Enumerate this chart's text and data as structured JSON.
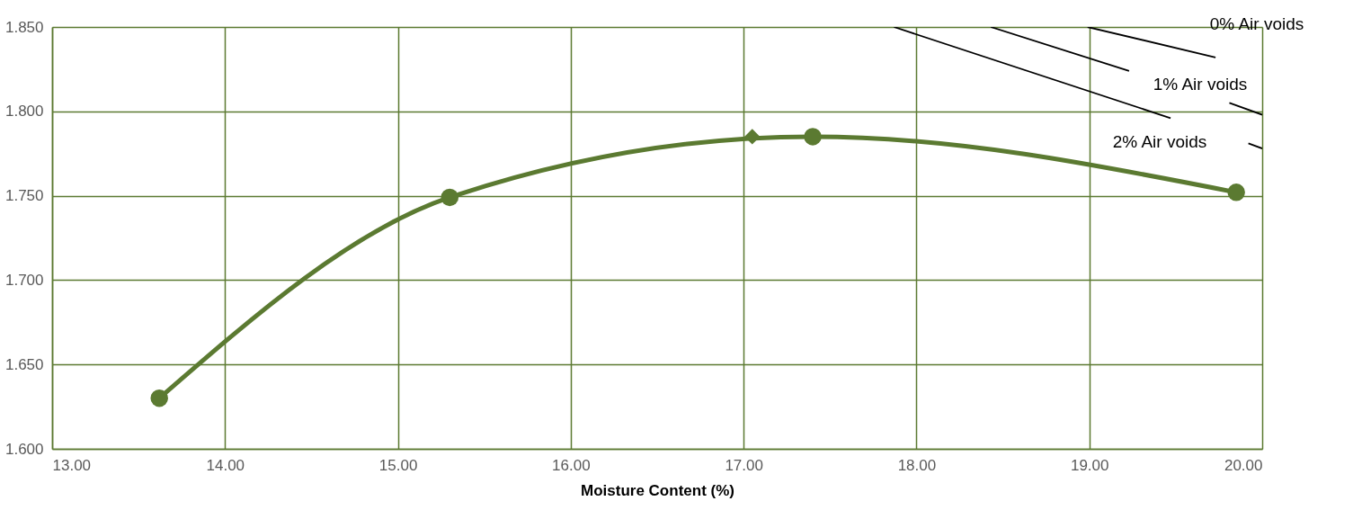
{
  "chart_data": {
    "type": "line",
    "xlabel": "Moisture Content (%)",
    "xlim": [
      13.0,
      20.0
    ],
    "xticks": [
      {
        "value": 13,
        "label": "13.00"
      },
      {
        "value": 14,
        "label": "14.00"
      },
      {
        "value": 15,
        "label": "15.00"
      },
      {
        "value": 16,
        "label": "16.00"
      },
      {
        "value": 17,
        "label": "17.00"
      },
      {
        "value": 18,
        "label": "18.00"
      },
      {
        "value": 19,
        "label": "19.00"
      },
      {
        "value": 20,
        "label": "20.00"
      }
    ],
    "ylim": [
      1.6,
      1.85
    ],
    "yticks": [
      {
        "value": 1.6,
        "label": "1.600"
      },
      {
        "value": 1.65,
        "label": "1.650"
      },
      {
        "value": 1.7,
        "label": "1.700"
      },
      {
        "value": 1.75,
        "label": "1.750"
      },
      {
        "value": 1.8,
        "label": "1.800"
      },
      {
        "value": 1.85,
        "label": "1.850"
      }
    ],
    "grid": true,
    "series": [
      {
        "color": "#5b7a31",
        "marker": "circle",
        "x": [
          13.62,
          15.3,
          17.4,
          19.85
        ],
        "values": [
          1.63,
          1.749,
          1.785,
          1.752
        ]
      },
      {
        "type": "scatter",
        "color": "#5b7a31",
        "marker": "diamond",
        "x": [
          17.05
        ],
        "values": [
          1.785
        ]
      },
      {
        "color": "#000000",
        "marker": "none",
        "x": [
          18.99,
          19.73
        ],
        "values": [
          1.85,
          1.832
        ]
      },
      {
        "color": "#000000",
        "marker": "none",
        "x": [
          18.43,
          19.23,
          19.5,
          19.81,
          20.0
        ],
        "values": [
          1.85,
          1.824,
          null,
          1.805,
          1.798
        ]
      },
      {
        "color": "#000000",
        "marker": "none",
        "x": [
          17.87,
          19.47,
          19.7,
          19.92,
          20.0
        ],
        "values": [
          1.85,
          1.796,
          null,
          1.781,
          1.778
        ]
      }
    ],
    "annotations": [
      "0% Air voids",
      "1% Air voids",
      "2% Air voids"
    ]
  }
}
